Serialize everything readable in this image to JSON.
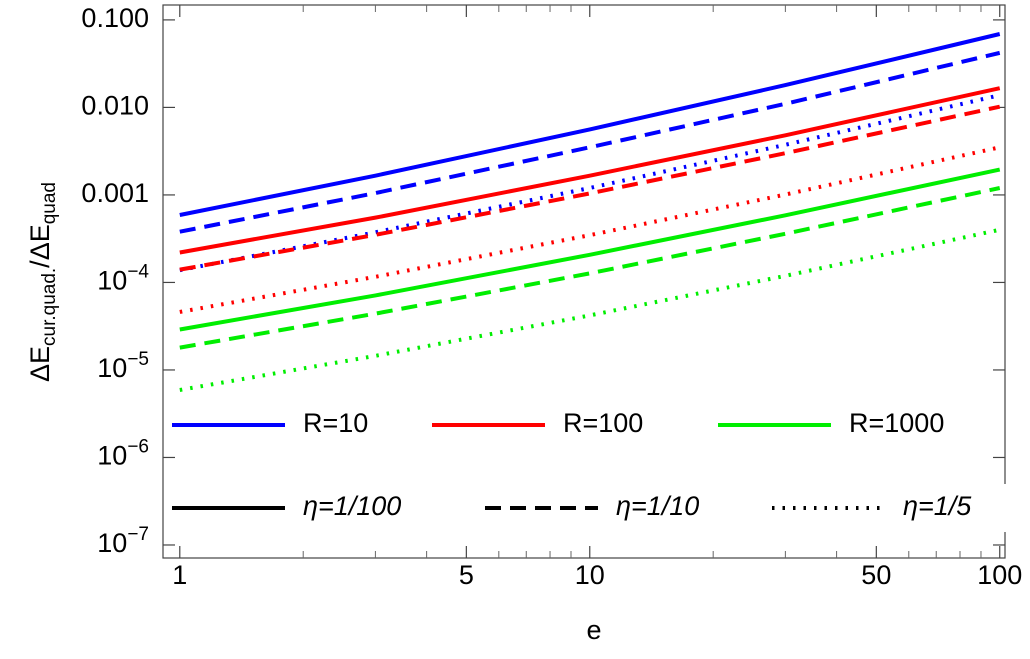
{
  "chart_data": {
    "type": "line",
    "log_x": true,
    "log_y": true,
    "xlabel": "e",
    "ylabel": {
      "main": "ΔE",
      "sub": "cur.quad.",
      "main2": "/ΔE",
      "sub2": "quad"
    },
    "x": [
      1,
      3,
      10,
      30,
      100
    ],
    "series": [
      {
        "color": "#0000ff",
        "dash": "solid",
        "values": [
          0.00059,
          0.00166,
          0.0056,
          0.018,
          0.069
        ]
      },
      {
        "color": "#0000ff",
        "dash": "dashed",
        "values": [
          0.00038,
          0.00105,
          0.0035,
          0.011,
          0.042
        ]
      },
      {
        "color": "#0000ff",
        "dash": "dotted",
        "values": [
          0.000138,
          0.000374,
          0.0012,
          0.00374,
          0.0138
        ]
      },
      {
        "color": "#ff0000",
        "dash": "solid",
        "values": [
          0.00022,
          0.00055,
          0.00166,
          0.0048,
          0.0166
        ]
      },
      {
        "color": "#ff0000",
        "dash": "dashed",
        "values": [
          0.00014,
          0.00035,
          0.00104,
          0.003,
          0.0102
        ]
      },
      {
        "color": "#ff0000",
        "dash": "dotted",
        "values": [
          4.6e-05,
          0.000116,
          0.000347,
          0.00101,
          0.0035
        ]
      },
      {
        "color": "#00ee00",
        "dash": "solid",
        "values": [
          2.9e-05,
          7.1e-05,
          0.000207,
          0.000585,
          0.00195
        ]
      },
      {
        "color": "#00ee00",
        "dash": "dashed",
        "values": [
          1.8e-05,
          4.4e-05,
          0.000127,
          0.00036,
          0.0012
        ]
      },
      {
        "color": "#00ee00",
        "dash": "dotted",
        "values": [
          5.9e-06,
          1.45e-05,
          4.2e-05,
          0.000119,
          0.0004
        ]
      }
    ],
    "legend_colors": [
      {
        "label": "R=10",
        "color": "#0000ff"
      },
      {
        "label": "R=100",
        "color": "#ff0000"
      },
      {
        "label": "R=1000",
        "color": "#00ee00"
      }
    ],
    "legend_styles": [
      {
        "label": "η=1/100",
        "dash": "solid"
      },
      {
        "label": "η=1/10",
        "dash": "dashed"
      },
      {
        "label": "η=1/5",
        "dash": "dotted"
      }
    ],
    "legend_style_color": "#000000",
    "xlim": [
      0.91,
      103
    ],
    "ylim": [
      7.1e-08,
      0.148
    ],
    "xticks": [
      1,
      5,
      10,
      50,
      100
    ],
    "xminor": [
      2,
      3,
      4,
      6,
      7,
      8,
      9,
      20,
      30,
      40,
      60,
      70,
      80,
      90
    ],
    "yticks": [
      {
        "value": 0.1,
        "label": "0.100"
      },
      {
        "value": 0.01,
        "label": "0.010"
      },
      {
        "value": 0.001,
        "label": "0.001"
      },
      {
        "value": 0.0001,
        "label": "10",
        "exponent": "−4"
      },
      {
        "value": 1e-05,
        "label": "10",
        "exponent": "−5"
      },
      {
        "value": 1e-06,
        "label": "10",
        "exponent": "−6"
      },
      {
        "value": 1e-07,
        "label": "10",
        "exponent": "−7"
      }
    ]
  }
}
